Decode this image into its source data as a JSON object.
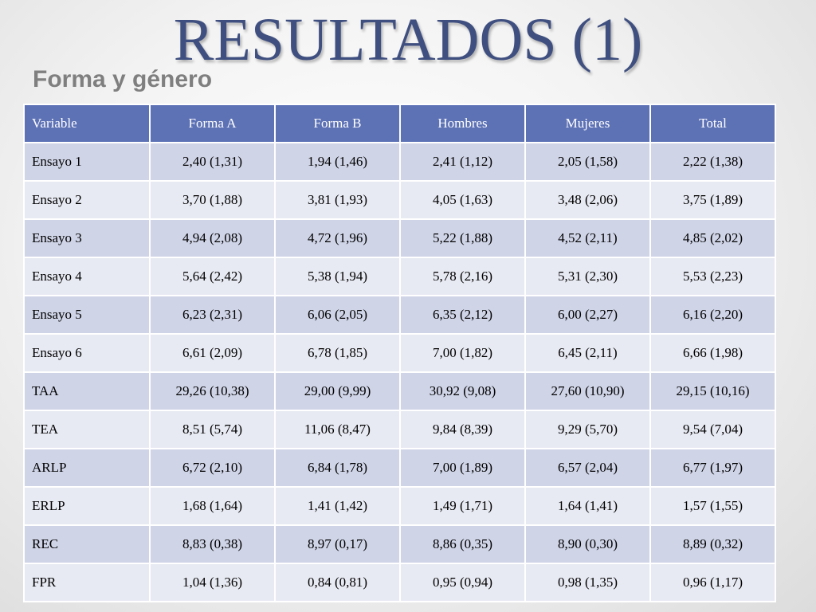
{
  "slide": {
    "title": "RESULTADOS (1)",
    "subtitle": "Forma y género"
  },
  "table": {
    "headers": [
      "Variable",
      "Forma A",
      "Forma B",
      "Hombres",
      "Mujeres",
      "Total"
    ],
    "rows": [
      [
        "Ensayo 1",
        "2,40 (1,31)",
        "1,94 (1,46)",
        "2,41 (1,12)",
        "2,05 (1,58)",
        "2,22 (1,38)"
      ],
      [
        "Ensayo 2",
        "3,70 (1,88)",
        "3,81 (1,93)",
        "4,05 (1,63)",
        "3,48 (2,06)",
        "3,75 (1,89)"
      ],
      [
        "Ensayo 3",
        "4,94 (2,08)",
        "4,72 (1,96)",
        "5,22 (1,88)",
        "4,52 (2,11)",
        "4,85 (2,02)"
      ],
      [
        "Ensayo 4",
        "5,64 (2,42)",
        "5,38 (1,94)",
        "5,78 (2,16)",
        "5,31 (2,30)",
        "5,53 (2,23)"
      ],
      [
        "Ensayo 5",
        "6,23 (2,31)",
        "6,06 (2,05)",
        "6,35 (2,12)",
        "6,00 (2,27)",
        "6,16 (2,20)"
      ],
      [
        "Ensayo 6",
        "6,61 (2,09)",
        "6,78 (1,85)",
        "7,00 (1,82)",
        "6,45 (2,11)",
        "6,66 (1,98)"
      ],
      [
        "TAA",
        "29,26 (10,38)",
        "29,00 (9,99)",
        "30,92 (9,08)",
        "27,60 (10,90)",
        "29,15 (10,16)"
      ],
      [
        "TEA",
        "8,51 (5,74)",
        "11,06 (8,47)",
        "9,84 (8,39)",
        "9,29 (5,70)",
        "9,54 (7,04)"
      ],
      [
        "ARLP",
        "6,72 (2,10)",
        "6,84 (1,78)",
        "7,00 (1,89)",
        "6,57 (2,04)",
        "6,77 (1,97)"
      ],
      [
        "ERLP",
        "1,68 (1,64)",
        "1,41 (1,42)",
        "1,49 (1,71)",
        "1,64 (1,41)",
        "1,57 (1,55)"
      ],
      [
        "REC",
        "8,83 (0,38)",
        "8,97 (0,17)",
        "8,86 (0,35)",
        "8,90 (0,30)",
        "8,89 (0,32)"
      ],
      [
        "FPR",
        "1,04 (1,36)",
        "0,84 (0,81)",
        "0,95 (0,94)",
        "0,98 (1,35)",
        "0,96 (1,17)"
      ]
    ]
  },
  "colors": {
    "title": "#3f4f7f",
    "subtitle": "#7f7f7f",
    "header_bg": "#5d71b5",
    "row_odd_bg": "#cfd4e7",
    "row_even_bg": "#e8eaf3"
  }
}
